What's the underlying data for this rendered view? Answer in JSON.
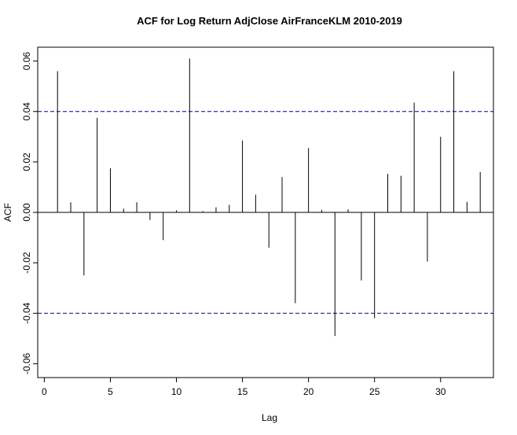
{
  "chart_data": {
    "type": "bar",
    "title": "ACF for Log Return AdjClose AirFranceKLM 2010-2019",
    "xlabel": "Lag",
    "ylabel": "ACF",
    "xlim": [
      -0.5,
      34.0
    ],
    "ylim": [
      -0.0655,
      0.0655
    ],
    "xticks": [
      0,
      5,
      10,
      15,
      20,
      25,
      30
    ],
    "yticks": [
      -0.06,
      -0.04,
      -0.02,
      0.0,
      0.02,
      0.04,
      0.06
    ],
    "ytick_labels": [
      "-0.06",
      "-0.04",
      "-0.02",
      "0.00",
      "0.02",
      "0.04",
      "0.06"
    ],
    "confidence_bound": 0.04,
    "lags": [
      1,
      2,
      3,
      4,
      5,
      6,
      7,
      8,
      9,
      10,
      11,
      12,
      13,
      14,
      15,
      16,
      17,
      18,
      19,
      20,
      21,
      22,
      23,
      24,
      25,
      26,
      27,
      28,
      29,
      30,
      31,
      32,
      33
    ],
    "values": [
      0.056,
      0.004,
      -0.025,
      0.0375,
      0.0175,
      0.0015,
      0.004,
      -0.003,
      -0.011,
      0.0008,
      0.061,
      0.0005,
      0.002,
      0.003,
      0.0285,
      0.007,
      -0.014,
      0.014,
      -0.036,
      0.0255,
      0.001,
      -0.049,
      0.0012,
      -0.027,
      -0.042,
      0.0153,
      0.0145,
      0.0435,
      -0.0195,
      0.03,
      0.056,
      0.0042,
      0.016
    ],
    "colors": {
      "line": "#000000",
      "bound": "#00008b"
    }
  }
}
